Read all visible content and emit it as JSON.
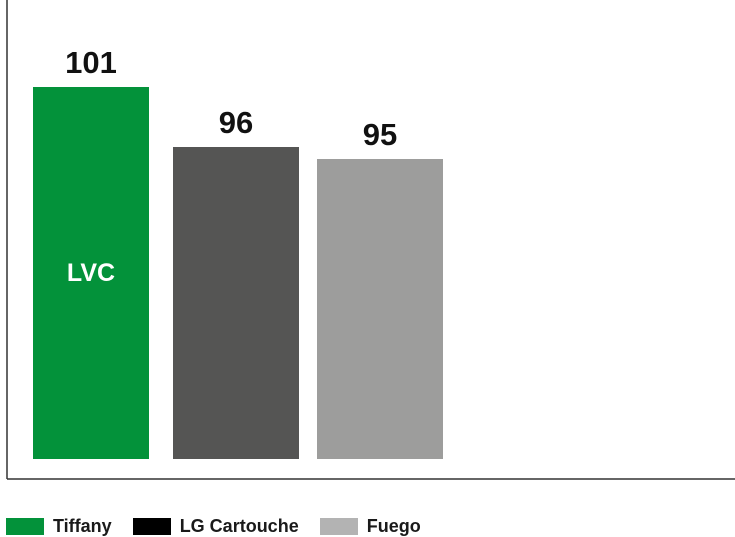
{
  "chart_data": {
    "type": "bar",
    "categories": [
      "Tiffany",
      "LG Cartouche",
      "Fuego"
    ],
    "values": [
      101,
      96,
      95
    ],
    "data_labels": [
      "101",
      "96",
      "95"
    ],
    "bar_inner_labels": [
      "LVC",
      "",
      ""
    ],
    "bar_colors": [
      "#03923a",
      "#555554",
      "#9d9d9c"
    ],
    "title": "",
    "xlabel": "",
    "ylabel": "",
    "ylim": [
      70,
      102.5
    ],
    "grid": false,
    "legend_position": "bottom-left",
    "legend": [
      {
        "label": "Tiffany",
        "color": "#03923a"
      },
      {
        "label": "LG Cartouche",
        "color": "#000000"
      },
      {
        "label": "Fuego",
        "color": "#b3b3b3"
      }
    ]
  }
}
